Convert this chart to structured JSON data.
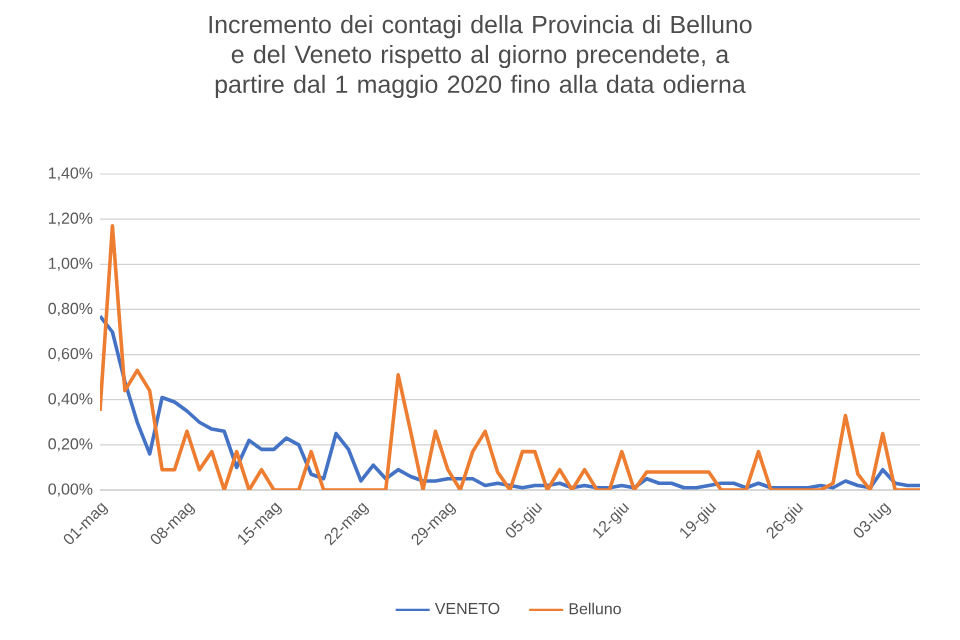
{
  "chart_data": {
    "type": "line",
    "title": "Incremento dei contagi della Provincia di Belluno e del  Veneto rispetto al giorno precendete, a partire dal 1 maggio 2020 fino alla data odierna",
    "x": [
      "2020-05-01",
      "2020-05-02",
      "2020-05-03",
      "2020-05-04",
      "2020-05-05",
      "2020-05-06",
      "2020-05-07",
      "2020-05-08",
      "2020-05-09",
      "2020-05-10",
      "2020-05-11",
      "2020-05-12",
      "2020-05-13",
      "2020-05-14",
      "2020-05-15",
      "2020-05-16",
      "2020-05-17",
      "2020-05-18",
      "2020-05-19",
      "2020-05-20",
      "2020-05-21",
      "2020-05-22",
      "2020-05-23",
      "2020-05-24",
      "2020-05-25",
      "2020-05-26",
      "2020-05-27",
      "2020-05-28",
      "2020-05-29",
      "2020-05-30",
      "2020-05-31",
      "2020-06-01",
      "2020-06-02",
      "2020-06-03",
      "2020-06-04",
      "2020-06-05",
      "2020-06-06",
      "2020-06-07",
      "2020-06-08",
      "2020-06-09",
      "2020-06-10",
      "2020-06-11",
      "2020-06-12",
      "2020-06-13",
      "2020-06-14",
      "2020-06-15",
      "2020-06-16",
      "2020-06-17",
      "2020-06-18",
      "2020-06-19",
      "2020-06-20",
      "2020-06-21",
      "2020-06-22",
      "2020-06-23",
      "2020-06-24",
      "2020-06-25",
      "2020-06-26",
      "2020-06-27",
      "2020-06-28",
      "2020-06-29",
      "2020-06-30",
      "2020-07-01",
      "2020-07-02",
      "2020-07-03",
      "2020-07-04",
      "2020-07-05",
      "2020-07-06"
    ],
    "series": [
      {
        "name": "VENETO",
        "color": "#4472c4",
        "values": [
          0.77,
          0.7,
          0.48,
          0.3,
          0.16,
          0.41,
          0.39,
          0.35,
          0.3,
          0.27,
          0.26,
          0.1,
          0.22,
          0.18,
          0.18,
          0.23,
          0.2,
          0.07,
          0.05,
          0.25,
          0.18,
          0.04,
          0.11,
          0.05,
          0.09,
          0.06,
          0.04,
          0.04,
          0.05,
          0.05,
          0.05,
          0.02,
          0.03,
          0.02,
          0.01,
          0.02,
          0.02,
          0.03,
          0.01,
          0.02,
          0.01,
          0.01,
          0.02,
          0.01,
          0.05,
          0.03,
          0.03,
          0.01,
          0.01,
          0.02,
          0.03,
          0.03,
          0.01,
          0.03,
          0.01,
          0.01,
          0.01,
          0.01,
          0.02,
          0.01,
          0.04,
          0.02,
          0.01,
          0.09,
          0.03,
          0.02,
          0.02
        ]
      },
      {
        "name": "Belluno",
        "color": "#ed7d31",
        "values": [
          0.35,
          1.17,
          0.44,
          0.53,
          0.44,
          0.09,
          0.09,
          0.26,
          0.09,
          0.17,
          0.0,
          0.17,
          0.0,
          0.09,
          0.0,
          0.0,
          0.0,
          0.17,
          0.0,
          0.0,
          0.0,
          0.0,
          0.0,
          0.0,
          0.51,
          0.26,
          0.0,
          0.26,
          0.09,
          0.0,
          0.17,
          0.26,
          0.08,
          0.0,
          0.17,
          0.17,
          0.0,
          0.09,
          0.0,
          0.09,
          0.0,
          0.0,
          0.17,
          0.0,
          0.08,
          0.08,
          0.08,
          0.08,
          0.08,
          0.08,
          0.0,
          0.0,
          0.0,
          0.17,
          0.0,
          0.0,
          0.0,
          0.0,
          0.0,
          0.03,
          0.33,
          0.07,
          0.0,
          0.25,
          0.0,
          0.0,
          0.0
        ]
      }
    ],
    "xlim": [
      "2020-05-01",
      "2020-07-06"
    ],
    "xticks": [
      {
        "value": "2020-05-01",
        "label": "01-mag"
      },
      {
        "value": "2020-05-08",
        "label": "08-mag"
      },
      {
        "value": "2020-05-15",
        "label": "15-mag"
      },
      {
        "value": "2020-05-22",
        "label": "22-mag"
      },
      {
        "value": "2020-05-29",
        "label": "29-mag"
      },
      {
        "value": "2020-06-05",
        "label": "05-giu"
      },
      {
        "value": "2020-06-12",
        "label": "12-giu"
      },
      {
        "value": "2020-06-19",
        "label": "19-giu"
      },
      {
        "value": "2020-06-26",
        "label": "26-giu"
      },
      {
        "value": "2020-07-03",
        "label": "03-lug"
      }
    ],
    "ylim": [
      0,
      1.4
    ],
    "yticks": [
      {
        "value": 0,
        "label": "0,00%"
      },
      {
        "value": 0.2,
        "label": "0,20%"
      },
      {
        "value": 0.4,
        "label": "0,40%"
      },
      {
        "value": 0.6,
        "label": "0,60%"
      },
      {
        "value": 0.8,
        "label": "0,80%"
      },
      {
        "value": 1.0,
        "label": "1,00%"
      },
      {
        "value": 1.2,
        "label": "1,20%"
      },
      {
        "value": 1.4,
        "label": "1,40%"
      }
    ],
    "grid": "y",
    "legend": "bottom"
  }
}
